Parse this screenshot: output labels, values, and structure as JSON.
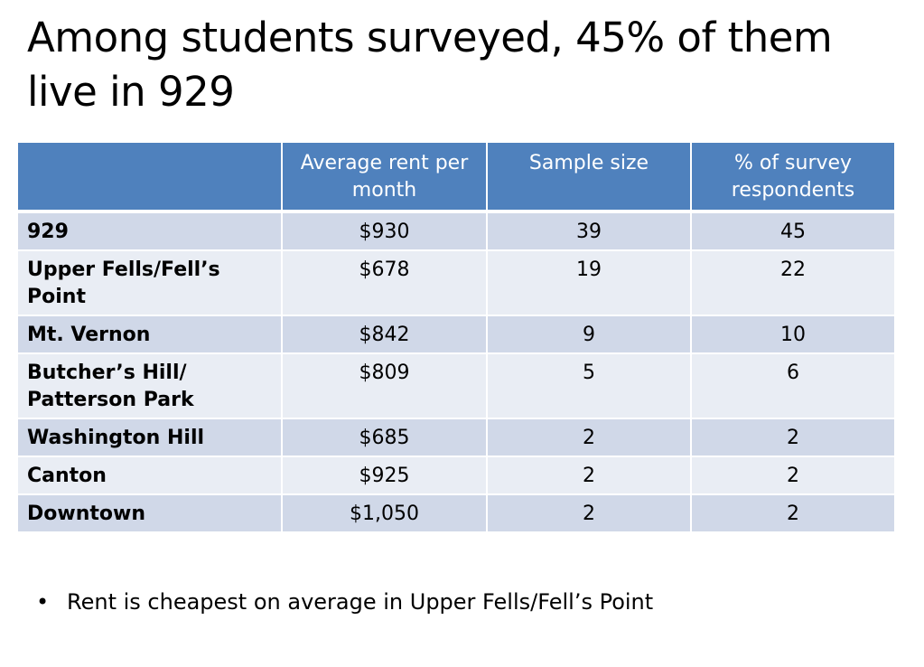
{
  "slide": {
    "title": "Among students surveyed, 45% of them live in 929"
  },
  "table": {
    "headers": [
      "",
      "Average rent per month",
      "Sample size",
      "% of survey respondents"
    ],
    "rows": [
      {
        "area": "929",
        "rent": "$930",
        "sample": "39",
        "percent": "45"
      },
      {
        "area": "Upper Fells/Fell’s Point",
        "rent": "$678",
        "sample": "19",
        "percent": "22"
      },
      {
        "area": "Mt. Vernon",
        "rent": "$842",
        "sample": "9",
        "percent": "10"
      },
      {
        "area": "Butcher’s Hill/ Patterson Park",
        "rent": "$809",
        "sample": "5",
        "percent": "6"
      },
      {
        "area": "Washington Hill",
        "rent": "$685",
        "sample": "2",
        "percent": "2"
      },
      {
        "area": "Canton",
        "rent": "$925",
        "sample": "2",
        "percent": "2"
      },
      {
        "area": "Downtown",
        "rent": "$1,050",
        "sample": "2",
        "percent": "2"
      }
    ]
  },
  "bullets": [
    {
      "marker": "•",
      "text": "Rent is cheapest on average in Upper Fells/Fell’s Point"
    }
  ],
  "colors": {
    "header_bg": "#4f81bd",
    "row_dark": "#d0d8e8",
    "row_light": "#e9edf4"
  }
}
